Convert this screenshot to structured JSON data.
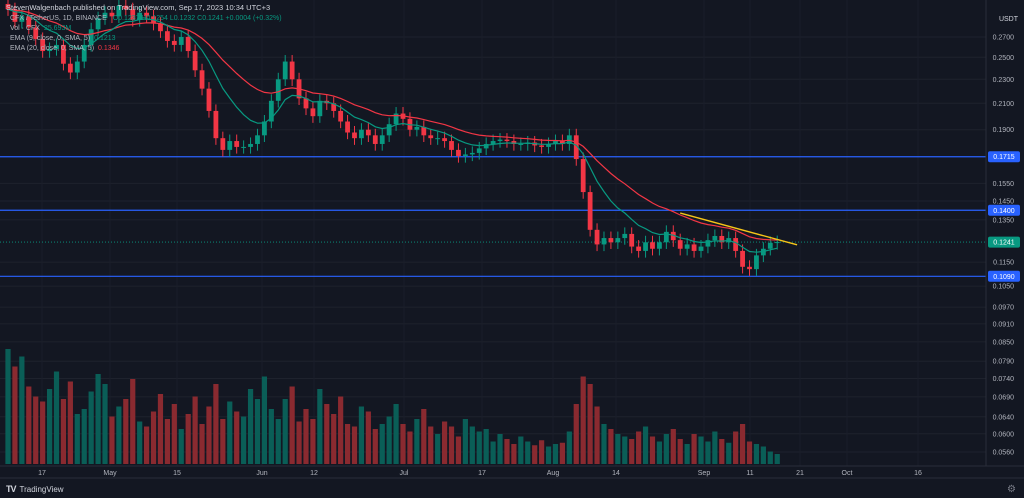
{
  "header": {
    "publisher": "StevenWalgenbach published on TradingView.com, Sep 17, 2023 10:34 UTC+3"
  },
  "legend": {
    "symbol": "CFX / TetherUS, 1D, BINANCE",
    "ohlc": "O0.1237 H0.1254 L0.1232 C0.1241 +0.0004 (+0.32%)",
    "volume_label": "Vol · CFX",
    "volume_value": "25.693M",
    "ema9_label": "EMA (9, close, 0, SMA, 5)",
    "ema9_value": "0.1213",
    "ema20_label": "EMA (20, close, 0, SMA, 5)",
    "ema20_value": "0.1346"
  },
  "price_axis": {
    "currency": "USDT",
    "ticks": [
      "0.2700",
      "0.2500",
      "0.2300",
      "0.2100",
      "0.1900",
      "0.1550",
      "0.1450",
      "0.1350",
      "0.1150",
      "0.1050",
      "0.0970",
      "0.0910",
      "0.0850",
      "0.0790",
      "0.0740",
      "0.0690",
      "0.0640",
      "0.0600",
      "0.0560"
    ]
  },
  "time_axis": {
    "ticks": [
      "17",
      "May",
      "15",
      "Jun",
      "12",
      "Jul",
      "17",
      "Aug",
      "14",
      "Sep",
      "11",
      "21",
      "Oct",
      "16"
    ]
  },
  "levels": [
    {
      "price": 0.1715,
      "label": "0.1715",
      "color": "#2962ff"
    },
    {
      "price": 0.14,
      "label": "0.1400",
      "color": "#2962ff"
    },
    {
      "price": 0.109,
      "label": "0.1090",
      "color": "#2962ff"
    }
  ],
  "last_price": {
    "label": "0.1241",
    "color": "#089981"
  },
  "trendline_color": "#f5c518",
  "colors": {
    "up": "#089981",
    "down": "#f23645",
    "ema9": "#089981",
    "ema20": "#f23645",
    "background": "#131722"
  },
  "footer": {
    "brand": "TradingView"
  },
  "chart_data": {
    "type": "candlestick",
    "symbol": "CFX / TetherUS",
    "interval": "1D",
    "exchange": "BINANCE",
    "y_axis_scale": "log",
    "last_close": 0.1241,
    "horizontal_levels": [
      0.1715,
      0.14,
      0.109
    ],
    "closes": [
      0.3,
      0.286,
      0.292,
      0.28,
      0.268,
      0.256,
      0.258,
      0.262,
      0.244,
      0.236,
      0.246,
      0.262,
      0.278,
      0.29,
      0.296,
      0.292,
      0.304,
      0.3,
      0.288,
      0.296,
      0.292,
      0.284,
      0.276,
      0.266,
      0.262,
      0.27,
      0.256,
      0.238,
      0.222,
      0.204,
      0.184,
      0.176,
      0.182,
      0.178,
      0.178,
      0.18,
      0.186,
      0.196,
      0.212,
      0.23,
      0.246,
      0.23,
      0.214,
      0.206,
      0.2,
      0.212,
      0.21,
      0.204,
      0.196,
      0.188,
      0.184,
      0.19,
      0.186,
      0.18,
      0.186,
      0.194,
      0.202,
      0.198,
      0.19,
      0.192,
      0.186,
      0.184,
      0.184,
      0.182,
      0.176,
      0.172,
      0.173,
      0.174,
      0.177,
      0.18,
      0.182,
      0.183,
      0.182,
      0.18,
      0.18,
      0.181,
      0.179,
      0.178,
      0.18,
      0.182,
      0.18,
      0.186,
      0.17,
      0.15,
      0.13,
      0.123,
      0.126,
      0.124,
      0.126,
      0.128,
      0.122,
      0.12,
      0.124,
      0.121,
      0.124,
      0.129,
      0.125,
      0.121,
      0.123,
      0.12,
      0.122,
      0.125,
      0.127,
      0.124,
      0.126,
      0.12,
      0.113,
      0.112,
      0.118,
      0.121,
      0.1237,
      0.1241
    ],
    "volumes": [
      9.2,
      7.8,
      8.6,
      6.2,
      5.4,
      5.0,
      6.0,
      7.4,
      5.2,
      6.6,
      4.0,
      4.4,
      5.8,
      7.2,
      6.4,
      3.8,
      4.6,
      5.2,
      6.8,
      3.4,
      3.0,
      4.2,
      5.6,
      3.6,
      4.8,
      2.8,
      4.0,
      5.4,
      3.2,
      4.6,
      6.4,
      3.6,
      5.0,
      4.2,
      3.8,
      6.0,
      5.2,
      7.0,
      4.4,
      3.6,
      5.2,
      6.2,
      3.4,
      4.4,
      3.6,
      6.0,
      4.8,
      4.0,
      5.4,
      3.2,
      3.0,
      4.6,
      4.2,
      2.8,
      3.2,
      3.8,
      4.8,
      3.2,
      2.6,
      3.6,
      4.4,
      3.0,
      2.4,
      3.4,
      3.0,
      2.2,
      3.6,
      3.0,
      2.6,
      2.8,
      1.8,
      2.4,
      2.0,
      1.6,
      2.2,
      1.8,
      1.5,
      1.9,
      1.4,
      1.6,
      1.7,
      2.6,
      4.8,
      7.0,
      6.4,
      4.6,
      3.2,
      2.8,
      2.4,
      2.2,
      2.0,
      2.6,
      3.0,
      2.2,
      1.8,
      2.4,
      2.8,
      2.0,
      1.6,
      2.4,
      2.2,
      1.8,
      2.6,
      2.0,
      1.7,
      2.6,
      3.2,
      1.8,
      1.6,
      1.4,
      1.0,
      0.8
    ]
  }
}
